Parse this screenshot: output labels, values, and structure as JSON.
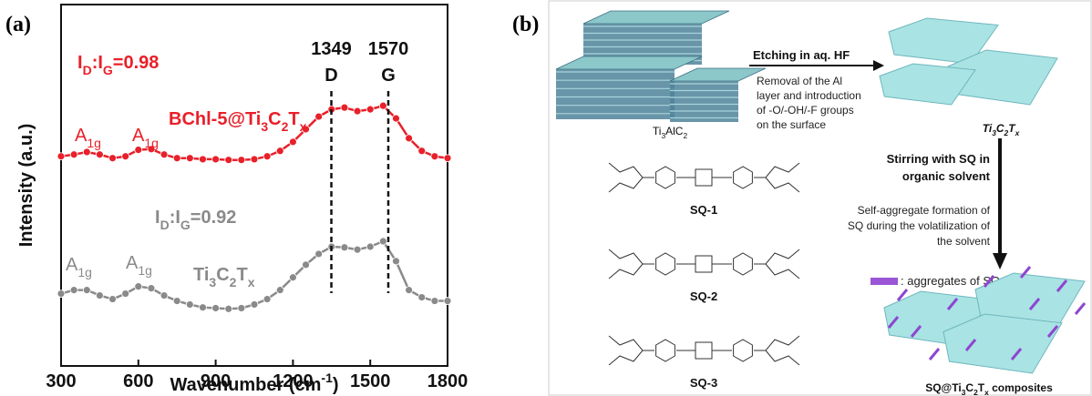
{
  "chart_data": {
    "type": "line",
    "panel_label": "(a)",
    "xlabel": "Wavenumber (cm^{-1})",
    "ylabel": "Intensity (a.u.)",
    "x": [
      300,
      350,
      400,
      450,
      500,
      550,
      600,
      650,
      700,
      750,
      800,
      850,
      900,
      950,
      1000,
      1050,
      1100,
      1150,
      1200,
      1250,
      1300,
      1350,
      1400,
      1450,
      1500,
      1550,
      1600,
      1650,
      1700,
      1750,
      1800
    ],
    "xlim": [
      300,
      1800
    ],
    "xticks": [
      300,
      600,
      900,
      1200,
      1500,
      1800
    ],
    "ylim": [
      0,
      10
    ],
    "series": [
      {
        "name": "BChl-5@Ti_{3}C_{2}T_{x}",
        "color": "#e8202a",
        "ratio_label": "I_{D}:I_{G}=0.98",
        "peak_labels": [
          "A_{1g}",
          "A_{1g}"
        ],
        "values": [
          5.8,
          5.85,
          5.92,
          5.85,
          5.75,
          5.8,
          5.98,
          6.0,
          5.85,
          5.75,
          5.75,
          5.72,
          5.72,
          5.7,
          5.7,
          5.72,
          5.8,
          5.95,
          6.2,
          6.55,
          6.9,
          7.1,
          7.15,
          7.05,
          7.1,
          7.2,
          6.85,
          6.3,
          5.95,
          5.8,
          5.75
        ]
      },
      {
        "name": "Ti_{3}C_{2}T_{x}",
        "color": "#8a8a8a",
        "ratio_label": "I_{D}:I_{G}=0.92",
        "peak_labels": [
          "A_{1g}",
          "A_{1g}"
        ],
        "values": [
          2.0,
          2.1,
          2.1,
          1.95,
          1.85,
          2.0,
          2.2,
          2.15,
          1.95,
          1.8,
          1.7,
          1.62,
          1.6,
          1.58,
          1.6,
          1.7,
          1.85,
          2.1,
          2.45,
          2.8,
          3.1,
          3.3,
          3.28,
          3.22,
          3.3,
          3.45,
          2.9,
          2.1,
          1.9,
          1.8,
          1.8
        ]
      }
    ],
    "peaks": [
      {
        "value": 1349,
        "band": "D"
      },
      {
        "value": 1570,
        "band": "G"
      }
    ]
  },
  "scheme": {
    "panel_label": "(b)",
    "precursor": "Ti_{3}AlC_{2}",
    "mxene": "Ti_{3}C_{2}T_{x}",
    "step1_title": "Etching in aq. HF",
    "step1_text": [
      "Removal of the Al",
      "layer and introduction",
      "of -O/-OH/-F groups",
      "on the surface"
    ],
    "step2_title": [
      "Stirring with SQ in",
      "organic solvent"
    ],
    "step2_text": [
      "Self-aggregate formation of",
      "SQ during the volatilization of",
      "the solvent"
    ],
    "legend": ": aggregates of SQ",
    "molecules": [
      "SQ-1",
      "SQ-2",
      "SQ-3"
    ],
    "product": "SQ@Ti_{3}C_{2}T_{x} composites"
  }
}
